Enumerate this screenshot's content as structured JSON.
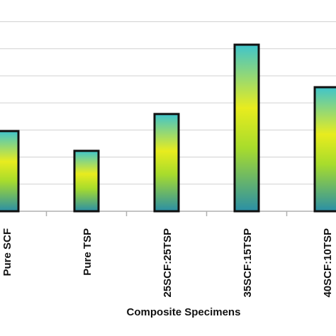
{
  "chart_data": {
    "type": "bar",
    "categories": [
      "Pure SCF",
      "Pure TSP",
      "25SCF:25TSP",
      "35SCF:15TSP",
      "40SCF:10TSP"
    ],
    "values": [
      2.96,
      2.23,
      3.59,
      6.15,
      4.58
    ],
    "xlabel": "Composite Specimens",
    "ylabel": "",
    "ylim": [
      0,
      7.8
    ],
    "yticks": [
      1,
      2,
      3,
      4,
      5,
      6,
      7
    ],
    "grid": true,
    "colors": {
      "bar_top": "#3fc4cc",
      "bar_mid": "#e8ec1e",
      "bar_low": "#a8dc2c",
      "bar_bottom": "#2a8fa6",
      "bar_outline": "#111111",
      "grid": "#d0d0d0",
      "axis": "#b0b0b0"
    }
  }
}
